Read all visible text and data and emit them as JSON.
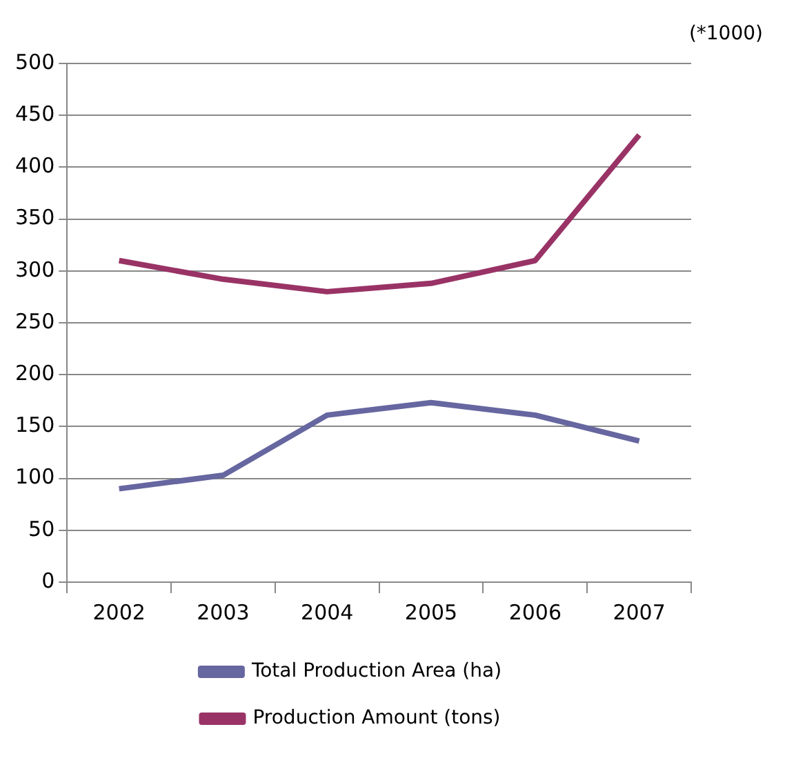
{
  "chart_data": {
    "type": "line",
    "categories": [
      "2002",
      "2003",
      "2004",
      "2005",
      "2006",
      "2007"
    ],
    "series": [
      {
        "name": "Total Production Area (ha)",
        "color": "#6666a0",
        "values": [
          90,
          103,
          161,
          173,
          161,
          136
        ]
      },
      {
        "name": "Production Amount (tons)",
        "color": "#993366",
        "values": [
          310,
          292,
          280,
          288,
          310,
          431
        ]
      }
    ],
    "ylim": [
      0,
      500
    ],
    "yticks": [
      0,
      50,
      100,
      150,
      200,
      250,
      300,
      350,
      400,
      450,
      500
    ],
    "grid": "y",
    "legend": "bottom",
    "marker": "none",
    "line_style": "solid",
    "annotations": [
      "(*1000)"
    ]
  }
}
